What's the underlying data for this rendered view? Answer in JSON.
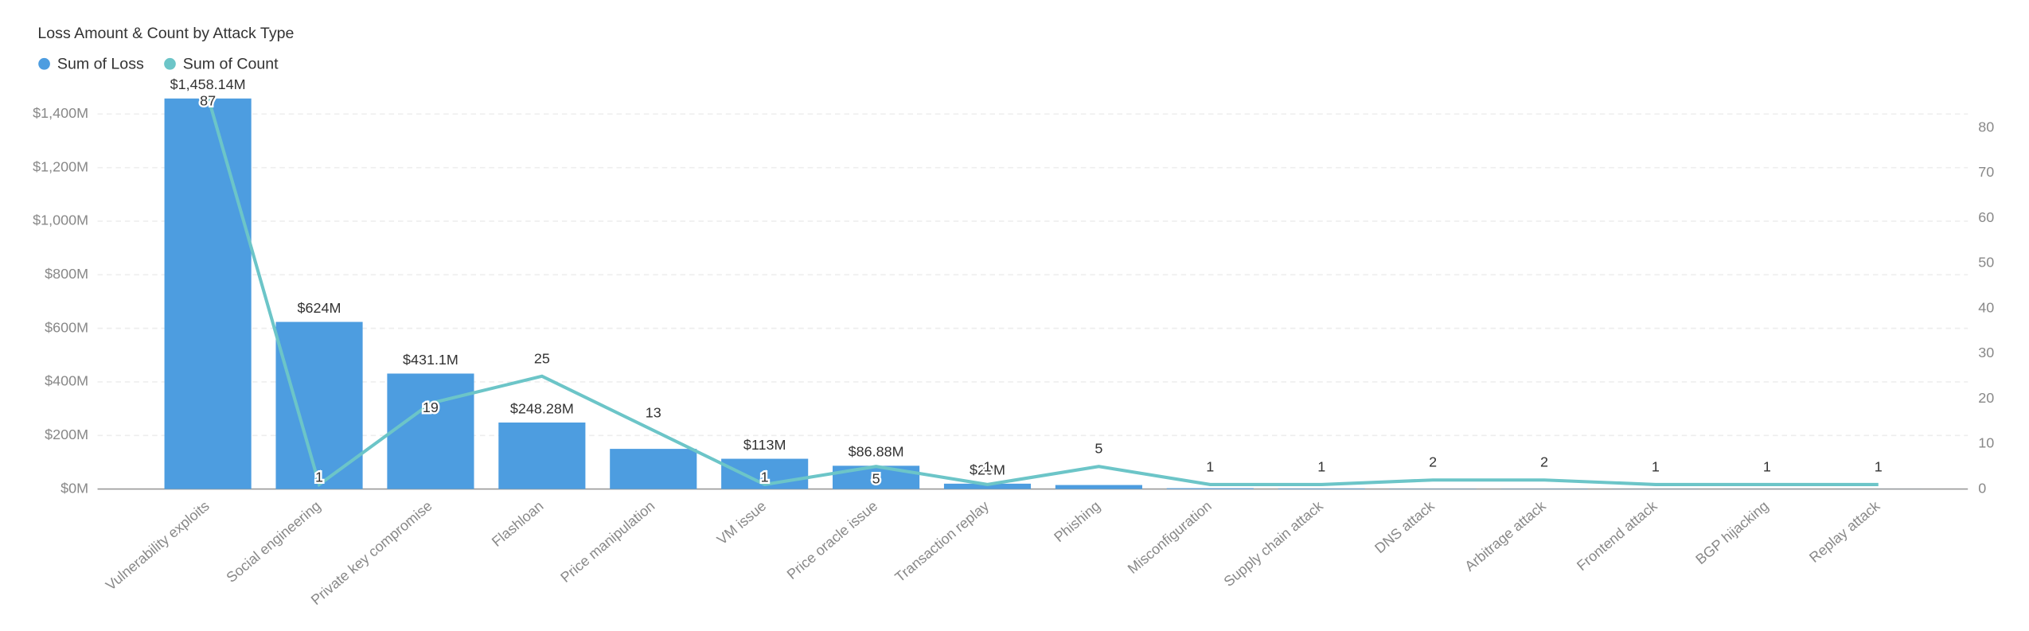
{
  "chart_data": {
    "type": "bar_line",
    "title": "Loss Amount & Count by Attack Type",
    "categories": [
      "Vulnerability exploits",
      "Social engineering",
      "Private key compromise",
      "Flashloan",
      "Price manipulation",
      "VM issue",
      "Price oracle issue",
      "Transaction replay",
      "Phishing",
      "Misconfiguration",
      "Supply chain attack",
      "DNS attack",
      "Arbitrage attack",
      "Frontend attack",
      "BGP hijacking",
      "Replay attack"
    ],
    "series": [
      {
        "name": "Sum of Loss",
        "color": "#4d9de0",
        "kind": "bar",
        "axis": "y",
        "values": [
          1458.14,
          624,
          431.1,
          248.28,
          150,
          113,
          86.88,
          20,
          15,
          3,
          2,
          1,
          1,
          0.5,
          0.3,
          0.2
        ],
        "value_labels": [
          "$1,458.14M",
          "$624M",
          "$431.1M",
          "$248.28M",
          null,
          "$113M",
          "$86.88M",
          "$20M",
          null,
          null,
          null,
          null,
          null,
          null,
          null,
          null
        ]
      },
      {
        "name": "Sum of Count",
        "color": "#6cc5c8",
        "kind": "line",
        "axis": "y2",
        "values": [
          87,
          1,
          19,
          25,
          13,
          1,
          5,
          1,
          5,
          1,
          1,
          2,
          2,
          1,
          1,
          1
        ]
      }
    ],
    "ylim": [
      0,
      1500
    ],
    "yticks": [
      {
        "value": 0,
        "label": "$0M"
      },
      {
        "value": 200,
        "label": "$200M"
      },
      {
        "value": 400,
        "label": "$400M"
      },
      {
        "value": 600,
        "label": "$600M"
      },
      {
        "value": 800,
        "label": "$800M"
      },
      {
        "value": 1000,
        "label": "$1,000M"
      },
      {
        "value": 1200,
        "label": "$1,200M"
      },
      {
        "value": 1400,
        "label": "$1,400M"
      }
    ],
    "y2lim": [
      0,
      89
    ],
    "y2ticks": [
      0,
      10,
      20,
      30,
      40,
      50,
      60,
      70,
      80
    ],
    "grid": true,
    "legend": "top-left"
  }
}
